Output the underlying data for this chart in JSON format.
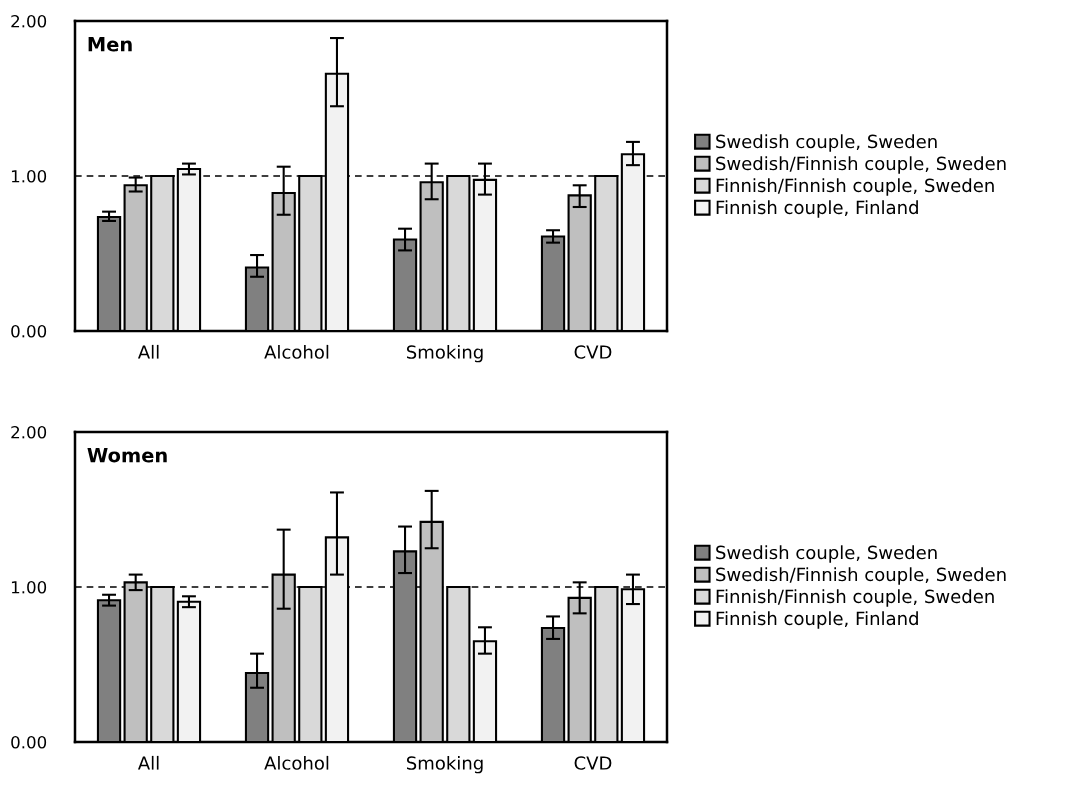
{
  "chart_data": [
    {
      "type": "bar",
      "title": "Men",
      "categories": [
        "All",
        "Alcohol",
        "Smoking",
        "CVD"
      ],
      "ylim": [
        0,
        2
      ],
      "yticks": [
        {
          "value": 0,
          "label": "0.00"
        },
        {
          "value": 1,
          "label": "1.00"
        },
        {
          "value": 2,
          "label": "2.00"
        }
      ],
      "grid": false,
      "legend": "right",
      "ref_lines": [
        {
          "axis": "y",
          "value": 1,
          "line_style": "dashed",
          "color": "#000000"
        }
      ],
      "series": [
        {
          "name": "Swedish couple, Sweden",
          "color": "#808080",
          "values": [
            0.735,
            0.41,
            0.59,
            0.61
          ],
          "errors": [
            [
              0.71,
              0.77
            ],
            [
              0.35,
              0.49
            ],
            [
              0.52,
              0.66
            ],
            [
              0.57,
              0.65
            ]
          ]
        },
        {
          "name": "Swedish/Finnish couple, Sweden",
          "color": "#bfbfbf",
          "values": [
            0.94,
            0.89,
            0.96,
            0.875
          ],
          "errors": [
            [
              0.9,
              0.99
            ],
            [
              0.75,
              1.06
            ],
            [
              0.85,
              1.08
            ],
            [
              0.8,
              0.94
            ]
          ]
        },
        {
          "name": "Finnish/Finnish couple, Sweden",
          "color": "#d9d9d9",
          "values": [
            1.0,
            1.0,
            1.0,
            1.0
          ]
        },
        {
          "name": "Finnish couple, Finland",
          "color": "#f2f2f2",
          "values": [
            1.045,
            1.66,
            0.975,
            1.14
          ],
          "errors": [
            [
              1.01,
              1.08
            ],
            [
              1.45,
              1.89
            ],
            [
              0.88,
              1.08
            ],
            [
              1.07,
              1.22
            ]
          ]
        }
      ]
    },
    {
      "type": "bar",
      "title": "Women",
      "categories": [
        "All",
        "Alcohol",
        "Smoking",
        "CVD"
      ],
      "ylim": [
        0,
        2
      ],
      "yticks": [
        {
          "value": 0,
          "label": "0.00"
        },
        {
          "value": 1,
          "label": "1.00"
        },
        {
          "value": 2,
          "label": "2.00"
        }
      ],
      "grid": false,
      "legend": "right",
      "ref_lines": [
        {
          "axis": "y",
          "value": 1,
          "line_style": "dashed",
          "color": "#000000"
        }
      ],
      "series": [
        {
          "name": "Swedish couple, Sweden",
          "color": "#808080",
          "values": [
            0.915,
            0.445,
            1.23,
            0.735
          ],
          "errors": [
            [
              0.88,
              0.95
            ],
            [
              0.35,
              0.57
            ],
            [
              1.09,
              1.39
            ],
            [
              0.665,
              0.81
            ]
          ]
        },
        {
          "name": "Swedish/Finnish couple, Sweden",
          "color": "#bfbfbf",
          "values": [
            1.03,
            1.08,
            1.42,
            0.93
          ],
          "errors": [
            [
              0.98,
              1.08
            ],
            [
              0.86,
              1.37
            ],
            [
              1.25,
              1.62
            ],
            [
              0.83,
              1.03
            ]
          ]
        },
        {
          "name": "Finnish/Finnish couple, Sweden",
          "color": "#d9d9d9",
          "values": [
            1.0,
            1.0,
            1.0,
            1.0
          ]
        },
        {
          "name": "Finnish couple, Finland",
          "color": "#f2f2f2",
          "values": [
            0.905,
            1.32,
            0.65,
            0.985
          ],
          "errors": [
            [
              0.87,
              0.94
            ],
            [
              1.08,
              1.61
            ],
            [
              0.57,
              0.74
            ],
            [
              0.89,
              1.08
            ]
          ]
        }
      ]
    }
  ]
}
